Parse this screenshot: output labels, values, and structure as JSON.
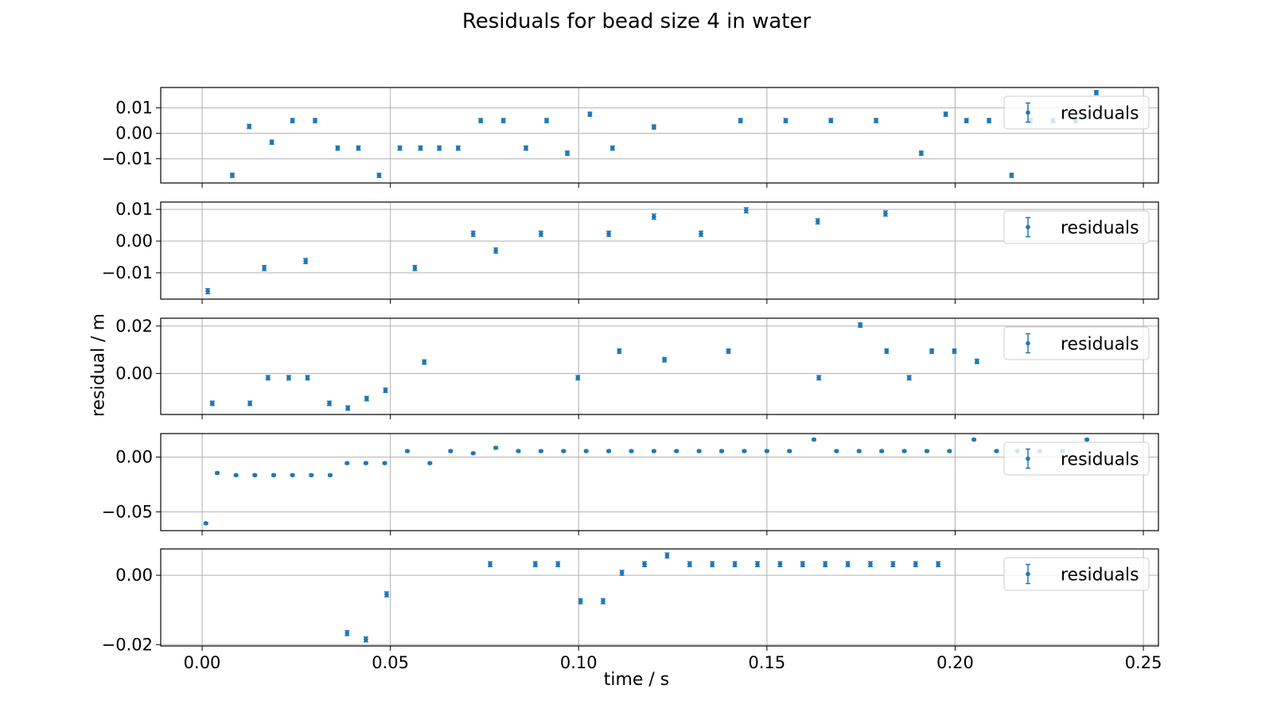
{
  "figure": {
    "title": "Residuals for bead  size 4 in water",
    "xlabel": "time / s",
    "ylabel": "residual / m"
  },
  "chart_data": [
    {
      "type": "scatter",
      "series": [
        {
          "name": "residuals",
          "color": "#1f77b4",
          "error_bars": true
        }
      ],
      "legend": "top-right",
      "grid": true,
      "xlim": [
        -0.011,
        0.254
      ],
      "ylim": [
        -0.0195,
        0.018
      ],
      "xticks": [
        0.0,
        0.05,
        0.1,
        0.15,
        0.2,
        0.25
      ],
      "yticks": [
        -0.01,
        0.0,
        0.01
      ],
      "ytick_labels": [
        "−0.01",
        "0.00",
        "0.01"
      ],
      "x": [
        0.008,
        0.0125,
        0.0185,
        0.024,
        0.03,
        0.036,
        0.0415,
        0.047,
        0.0525,
        0.058,
        0.063,
        0.068,
        0.074,
        0.08,
        0.086,
        0.0915,
        0.097,
        0.103,
        0.109,
        0.12,
        0.143,
        0.155,
        0.167,
        0.179,
        0.191,
        0.1975,
        0.203,
        0.209,
        0.215,
        0.22,
        0.226,
        0.232,
        0.2375
      ],
      "y": [
        -0.0165,
        0.0027,
        -0.0035,
        0.005,
        0.005,
        -0.0058,
        -0.0058,
        -0.0165,
        -0.0058,
        -0.0058,
        -0.0058,
        -0.0058,
        0.005,
        0.005,
        -0.0058,
        0.005,
        -0.0078,
        0.0075,
        -0.0058,
        0.0025,
        0.005,
        0.005,
        0.005,
        0.005,
        -0.0078,
        0.0075,
        0.005,
        0.005,
        -0.0165,
        0.005,
        0.005,
        0.005,
        0.016
      ],
      "yerr": 0.0008
    },
    {
      "type": "scatter",
      "series": [
        {
          "name": "residuals",
          "color": "#1f77b4",
          "error_bars": true
        }
      ],
      "legend": "top-right",
      "grid": true,
      "xlim": [
        -0.011,
        0.254
      ],
      "ylim": [
        -0.0183,
        0.0123
      ],
      "xticks": [
        0.0,
        0.05,
        0.1,
        0.15,
        0.2,
        0.25
      ],
      "yticks": [
        -0.01,
        0.0,
        0.01
      ],
      "ytick_labels": [
        "−0.01",
        "0.00",
        "0.01"
      ],
      "x": [
        0.0015,
        0.0165,
        0.0275,
        0.0565,
        0.072,
        0.078,
        0.09,
        0.108,
        0.12,
        0.1325,
        0.1445,
        0.1635,
        0.1815
      ],
      "y": [
        -0.0158,
        -0.0085,
        -0.0063,
        -0.0085,
        0.0023,
        -0.003,
        0.0023,
        0.0023,
        0.0077,
        0.0023,
        0.0097,
        0.0062,
        0.0087
      ],
      "yerr": 0.0008
    },
    {
      "type": "scatter",
      "series": [
        {
          "name": "residuals",
          "color": "#1f77b4",
          "error_bars": true
        }
      ],
      "legend": "top-right",
      "grid": true,
      "xlim": [
        -0.011,
        0.254
      ],
      "ylim": [
        -0.0173,
        0.0233
      ],
      "xticks": [
        0.0,
        0.05,
        0.1,
        0.15,
        0.2,
        0.25
      ],
      "yticks": [
        0.0,
        0.02
      ],
      "ytick_labels": [
        "0.00",
        "0.02"
      ],
      "x": [
        0.0027,
        0.0127,
        0.0175,
        0.023,
        0.028,
        0.0338,
        0.0387,
        0.0437,
        0.0487,
        0.059,
        0.0998,
        0.1108,
        0.1228,
        0.1398,
        0.1638,
        0.1748,
        0.1818,
        0.1878,
        0.1938,
        0.1998,
        0.2058
      ],
      "y": [
        -0.0126,
        -0.0126,
        -0.0018,
        -0.0018,
        -0.0018,
        -0.0126,
        -0.0146,
        -0.0106,
        -0.0071,
        0.0048,
        -0.0018,
        0.0094,
        0.0058,
        0.0094,
        -0.0018,
        0.0204,
        0.0094,
        -0.0018,
        0.0094,
        0.0094,
        0.0051
      ],
      "yerr": 0.0009
    },
    {
      "type": "scatter",
      "series": [
        {
          "name": "residuals",
          "color": "#1f77b4",
          "error_bars": true
        }
      ],
      "legend": "top-right",
      "grid": true,
      "xlim": [
        -0.011,
        0.254
      ],
      "ylim": [
        -0.0672,
        0.0215
      ],
      "xticks": [
        0.0,
        0.05,
        0.1,
        0.15,
        0.2,
        0.25
      ],
      "yticks": [
        -0.05,
        0.0
      ],
      "ytick_labels": [
        "−0.05",
        "0.00"
      ],
      "x": [
        0.001,
        0.004,
        0.009,
        0.014,
        0.019,
        0.024,
        0.029,
        0.034,
        0.0385,
        0.0435,
        0.0485,
        0.0545,
        0.0605,
        0.066,
        0.072,
        0.078,
        0.084,
        0.09,
        0.096,
        0.102,
        0.108,
        0.114,
        0.12,
        0.126,
        0.132,
        0.138,
        0.144,
        0.15,
        0.156,
        0.1625,
        0.1685,
        0.1745,
        0.1805,
        0.1865,
        0.1925,
        0.1985,
        0.205,
        0.211,
        0.2165,
        0.2225,
        0.2285,
        0.235
      ],
      "y": [
        -0.0605,
        -0.0145,
        -0.0165,
        -0.0165,
        -0.0165,
        -0.0165,
        -0.0165,
        -0.0165,
        -0.0055,
        -0.0055,
        -0.0055,
        0.0055,
        -0.0055,
        0.0055,
        0.0035,
        0.0085,
        0.0055,
        0.0055,
        0.0055,
        0.0055,
        0.0055,
        0.0055,
        0.0055,
        0.0055,
        0.0055,
        0.0055,
        0.0055,
        0.0055,
        0.0055,
        0.016,
        0.0055,
        0.0055,
        0.0055,
        0.0055,
        0.0055,
        0.0055,
        0.016,
        0.0055,
        0.0055,
        0.0055,
        0.0055,
        0.016
      ],
      "yerr": 0.0008
    },
    {
      "type": "scatter",
      "series": [
        {
          "name": "residuals",
          "color": "#1f77b4",
          "error_bars": true
        }
      ],
      "legend": "top-right",
      "grid": true,
      "xlim": [
        -0.011,
        0.254
      ],
      "ylim": [
        -0.0204,
        0.0076
      ],
      "xticks": [
        0.0,
        0.05,
        0.1,
        0.15,
        0.2,
        0.25
      ],
      "xtick_labels": [
        "0.00",
        "0.05",
        "0.10",
        "0.15",
        "0.20",
        "0.25"
      ],
      "yticks": [
        -0.02,
        0.0
      ],
      "ytick_labels": [
        "−0.02",
        "0.00"
      ],
      "x": [
        0.0385,
        0.0435,
        0.049,
        0.0765,
        0.0885,
        0.0945,
        0.1005,
        0.1065,
        0.1115,
        0.1175,
        0.1235,
        0.1295,
        0.1355,
        0.1415,
        0.1475,
        0.1535,
        0.1595,
        0.1655,
        0.1715,
        0.1775,
        0.1835,
        0.1895,
        0.1955
      ],
      "y": [
        -0.0167,
        -0.0185,
        -0.0055,
        0.0032,
        0.0032,
        0.0032,
        -0.0075,
        -0.0075,
        0.0007,
        0.0032,
        0.0057,
        0.0032,
        0.0032,
        0.0032,
        0.0032,
        0.0032,
        0.0032,
        0.0032,
        0.0032,
        0.0032,
        0.0032,
        0.0032,
        0.0032
      ],
      "yerr": 0.0007
    }
  ]
}
